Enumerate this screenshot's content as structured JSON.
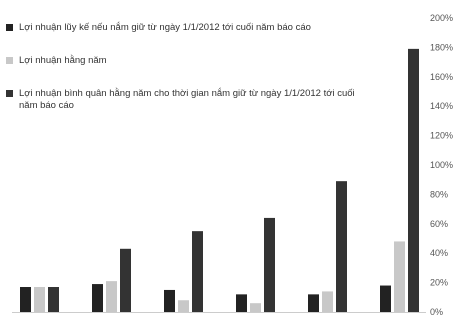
{
  "chart_data": {
    "type": "bar",
    "categories": [
      "",
      "",
      "",
      "",
      "",
      ""
    ],
    "series": [
      {
        "name": "Lợi nhuận lũy kế nếu nắm giữ từ ngày 1/1/2012 tới cuối năm báo cáo",
        "color": "#222222",
        "values": [
          17,
          19,
          15,
          12,
          12,
          18
        ]
      },
      {
        "name": "Lợi nhuận hằng năm",
        "color": "#c8c8c8",
        "values": [
          17,
          21,
          8,
          6,
          14,
          48
        ]
      },
      {
        "name": "Lợi nhuận bình quân hằng năm cho thời gian nắm giữ từ ngày 1/1/2012 tới cuối năm báo cáo",
        "color": "#333333",
        "values": [
          17,
          43,
          55,
          64,
          89,
          179
        ]
      }
    ],
    "y_ticks": [
      "0%",
      "20%",
      "40%",
      "60%",
      "80%",
      "100%",
      "120%",
      "140%",
      "160%",
      "180%",
      "200%"
    ],
    "ylim": [
      0,
      200
    ],
    "y_unit": "%",
    "grid": false,
    "legend_position": "top-left",
    "title": "",
    "xlabel": "",
    "ylabel": ""
  }
}
